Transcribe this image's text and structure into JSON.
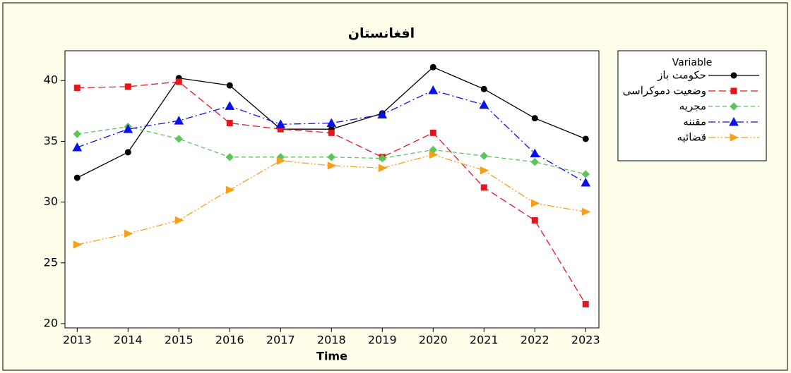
{
  "chart_data": {
    "type": "line",
    "title": "افغانستان",
    "xlabel": "Time",
    "x": [
      2013,
      2014,
      2015,
      2016,
      2017,
      2018,
      2019,
      2020,
      2021,
      2022,
      2023
    ],
    "xlim": [
      2012.76,
      2023.26
    ],
    "xticks": [
      2013,
      2014,
      2015,
      2016,
      2017,
      2018,
      2019,
      2020,
      2021,
      2022,
      2023
    ],
    "ylim": [
      19.65,
      42.45
    ],
    "yticks": [
      20,
      25,
      30,
      35,
      40
    ],
    "legend_title": "Variable",
    "legend": "right",
    "series": [
      {
        "name": "حکومت باز",
        "color": "#000000",
        "marker": "circle",
        "dash": "none",
        "values": [
          32.0,
          34.1,
          40.2,
          39.6,
          36.0,
          36.0,
          37.3,
          41.1,
          39.3,
          36.9,
          35.2
        ]
      },
      {
        "name": "وضعیت دموکراسی",
        "color": "#e8151b",
        "marker": "square",
        "dash": "10 5",
        "values": [
          39.4,
          39.5,
          39.9,
          36.5,
          36.0,
          35.7,
          33.7,
          35.7,
          31.2,
          28.5,
          21.6
        ]
      },
      {
        "name": "مجریه",
        "color": "#5cc45c",
        "marker": "diamond",
        "dash": "6 4",
        "values": [
          35.6,
          36.2,
          35.2,
          33.7,
          33.7,
          33.7,
          33.6,
          34.3,
          33.8,
          33.3,
          32.3
        ]
      },
      {
        "name": "مقننه",
        "color": "#0a10e8",
        "marker": "triangle",
        "dash": "10 4 2 4",
        "values": [
          34.5,
          36.0,
          36.7,
          37.9,
          36.4,
          36.5,
          37.2,
          39.2,
          38.0,
          34.0,
          31.6
        ]
      },
      {
        "name": "قضائیه",
        "color": "#f5a01a",
        "marker": "tri-right",
        "dash": "10 3 2 3 2 3",
        "values": [
          26.5,
          27.4,
          28.5,
          31.0,
          33.4,
          33.0,
          32.8,
          33.9,
          32.6,
          29.9,
          29.2
        ]
      }
    ]
  }
}
